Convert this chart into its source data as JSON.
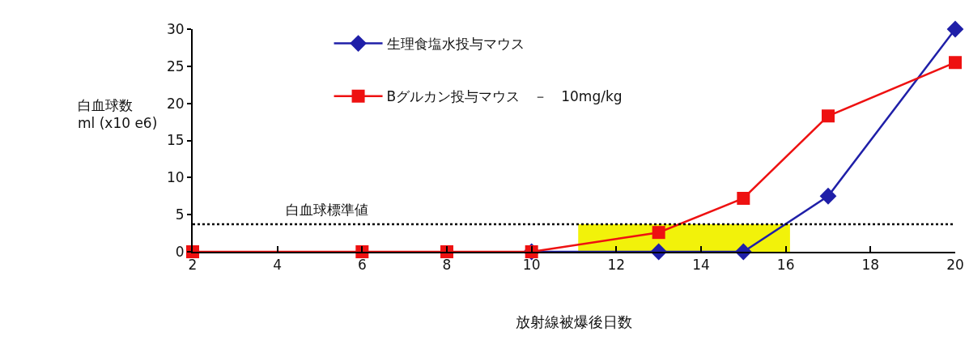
{
  "chart_data": {
    "type": "line",
    "xlabel": "放射線被爆後日数",
    "ylabel": "白血球数\nml (x10 e6)",
    "x": [
      2,
      6,
      8,
      10,
      13,
      15,
      17,
      20
    ],
    "series": [
      {
        "name": "生理食塩水投与マウス",
        "color": "#1f1fa8",
        "marker": "diamond",
        "values": [
          null,
          null,
          null,
          0,
          0,
          0,
          7.5,
          30
        ]
      },
      {
        "name": "Bグルカン投与マウス　－　10mg/kg",
        "color": "#ee1111",
        "marker": "square",
        "values": [
          0,
          0,
          0,
          0,
          2.6,
          7.2,
          18.3,
          25.5
        ]
      }
    ],
    "xlim": [
      2,
      20
    ],
    "xticks": [
      2,
      4,
      6,
      8,
      10,
      12,
      14,
      16,
      18,
      20
    ],
    "ylim": [
      0,
      30
    ],
    "yticks": [
      0,
      5,
      10,
      15,
      20,
      25,
      30
    ],
    "ref_lines": [
      {
        "axis": "y",
        "value": 3.7,
        "label": "白血球標準値",
        "line_style": "dotted",
        "color": "#000000"
      }
    ],
    "bands": [
      {
        "axis": "x",
        "from": 11.1,
        "to": 16.1,
        "color": "#f2f20a"
      }
    ],
    "grid": false,
    "legend": "top",
    "line_style": "solid"
  }
}
